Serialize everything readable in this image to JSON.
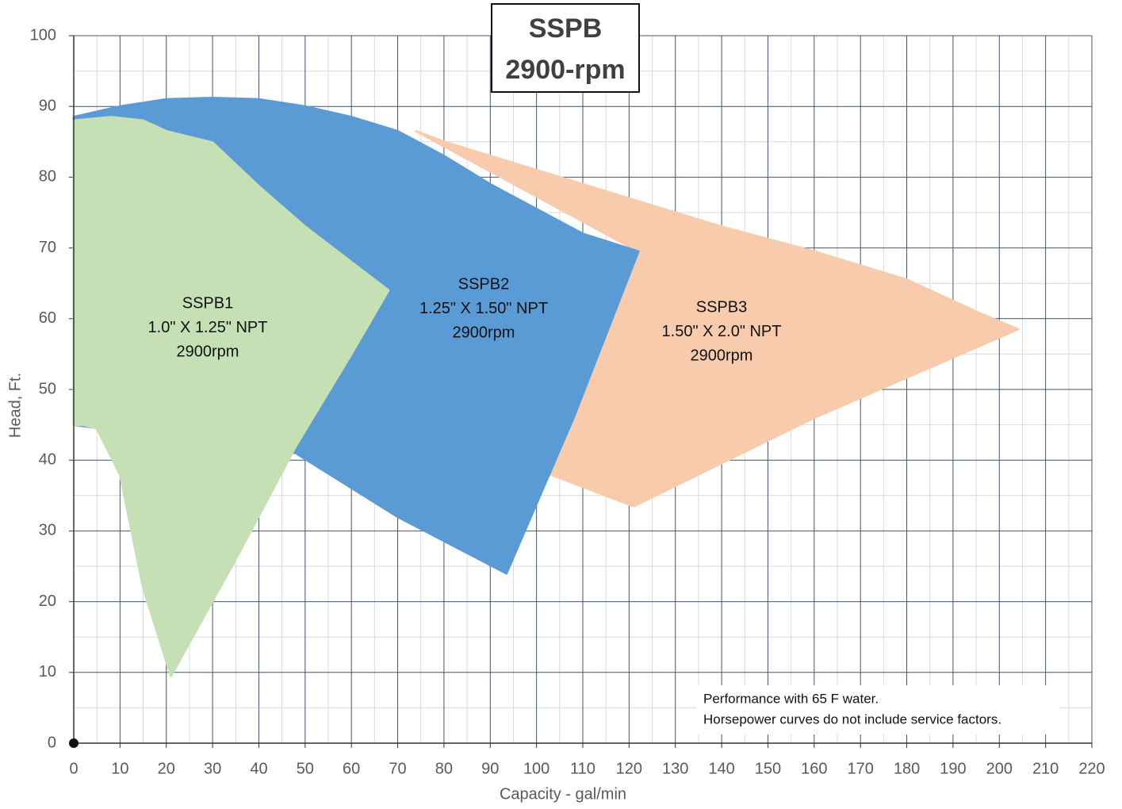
{
  "chart_data": {
    "type": "area",
    "title": "SSPB",
    "subtitle": "2900-rpm",
    "xlabel": "Capacity - gal/min",
    "ylabel": "Head, Ft.",
    "xlim": [
      0,
      220
    ],
    "ylim": [
      0,
      100
    ],
    "xticks": [
      0,
      10,
      20,
      30,
      40,
      50,
      60,
      70,
      80,
      90,
      100,
      110,
      120,
      130,
      140,
      150,
      160,
      170,
      180,
      190,
      200,
      210,
      220
    ],
    "yticks": [
      0,
      10,
      20,
      30,
      40,
      50,
      60,
      70,
      80,
      90,
      100
    ],
    "grid": true,
    "minor_grid": true,
    "series": [
      {
        "name": "SSPB1",
        "label_lines": [
          "1.0\" X 1.25\" NPT",
          "2900rpm"
        ],
        "color": "#c5e0b4",
        "x": [
          0,
          2,
          5,
          10,
          15,
          21,
          35,
          48,
          60,
          68,
          60,
          50,
          40,
          30,
          20,
          15,
          8,
          0
        ],
        "values": [
          45,
          45,
          44.5,
          38,
          22,
          9.5,
          26,
          42,
          55,
          64,
          68,
          73,
          78.7,
          84.9,
          86.5,
          88,
          88.5,
          88
        ]
      },
      {
        "name": "SSPB2",
        "label_lines": [
          "1.25\" X 1.50\" NPT",
          "2900rpm"
        ],
        "color": "#5b9bd5",
        "x": [
          0,
          10,
          20,
          30,
          40,
          50,
          60,
          70,
          80,
          90,
          100,
          110,
          122,
          108,
          93.5,
          70,
          48,
          0
        ],
        "values": [
          88.5,
          90,
          91,
          91.2,
          91,
          90,
          88.5,
          86.5,
          83,
          79,
          75.5,
          72,
          69.5,
          46,
          24,
          32,
          41,
          45
        ]
      },
      {
        "name": "SSPB3",
        "label_lines": [
          "1.50\" X 2.0\" NPT",
          "2900rpm"
        ],
        "color": "#f8cbad",
        "x": [
          74,
          80,
          100,
          120,
          140,
          160,
          180,
          195,
          204,
          160,
          121,
          103,
          122
        ],
        "values": [
          86.5,
          85,
          81,
          77,
          73,
          69.5,
          65.5,
          61,
          58.5,
          46,
          33.5,
          38,
          69.5
        ]
      }
    ],
    "notes": [
      "Performance with 65 F water.",
      "Horsepower curves do not include service factors."
    ]
  }
}
